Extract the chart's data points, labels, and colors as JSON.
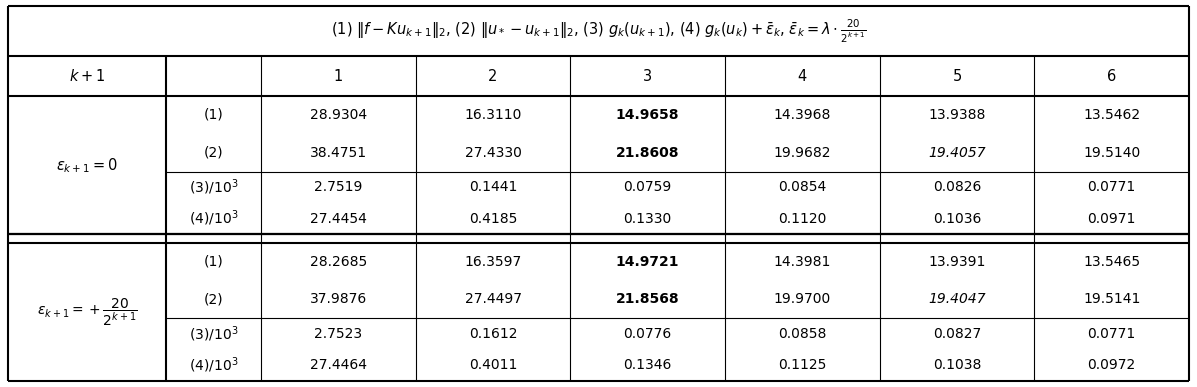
{
  "title": "(1) $\\|f - Ku_{k+1}\\|_2$, (2) $\\|u_* - u_{k+1}\\|_2$, (3) $g_k(u_{k+1})$, (4) $g_k(u_k) + \\bar{\\varepsilon}_k$, $\\bar{\\varepsilon}_k = \\lambda \\cdot \\frac{20}{2^{k+1}}$",
  "section1_label": "$\\varepsilon_{k+1} = 0$",
  "section2_label": "$\\varepsilon_{k+1} = +\\dfrac{20}{2^{k+1}}$",
  "col_nums": [
    "1",
    "2",
    "3",
    "4",
    "5",
    "6"
  ],
  "section1": {
    "rows": [
      {
        "label": "(1)",
        "values": [
          "28.9304",
          "16.3110",
          "14.9658",
          "14.3968",
          "13.9388",
          "13.5462"
        ],
        "bold_col": 2,
        "italic_col": -1
      },
      {
        "label": "(2)",
        "values": [
          "38.4751",
          "27.4330",
          "21.8608",
          "19.9682",
          "19.4057",
          "19.5140"
        ],
        "bold_col": 2,
        "italic_col": 4
      },
      {
        "label": "$(3)/10^3$",
        "values": [
          "2.7519",
          "0.1441",
          "0.0759",
          "0.0854",
          "0.0826",
          "0.0771"
        ],
        "bold_col": -1,
        "italic_col": -1
      },
      {
        "label": "$(4)/10^3$",
        "values": [
          "27.4454",
          "0.4185",
          "0.1330",
          "0.1120",
          "0.1036",
          "0.0971"
        ],
        "bold_col": -1,
        "italic_col": -1
      }
    ]
  },
  "section2": {
    "rows": [
      {
        "label": "(1)",
        "values": [
          "28.2685",
          "16.3597",
          "14.9721",
          "14.3981",
          "13.9391",
          "13.5465"
        ],
        "bold_col": 2,
        "italic_col": -1
      },
      {
        "label": "(2)",
        "values": [
          "37.9876",
          "27.4497",
          "21.8568",
          "19.9700",
          "19.4047",
          "19.5141"
        ],
        "bold_col": 2,
        "italic_col": 4
      },
      {
        "label": "$(3)/10^3$",
        "values": [
          "2.7523",
          "0.1612",
          "0.0776",
          "0.0858",
          "0.0827",
          "0.0771"
        ],
        "bold_col": -1,
        "italic_col": -1
      },
      {
        "label": "$(4)/10^3$",
        "values": [
          "27.4464",
          "0.4011",
          "0.1346",
          "0.1125",
          "0.1038",
          "0.0972"
        ],
        "bold_col": -1,
        "italic_col": -1
      }
    ]
  },
  "lw_thick": 1.5,
  "lw_thin": 0.8,
  "fs_title": 10.5,
  "fs_header": 10.5,
  "fs_data": 10.0,
  "fs_label": 10.5
}
